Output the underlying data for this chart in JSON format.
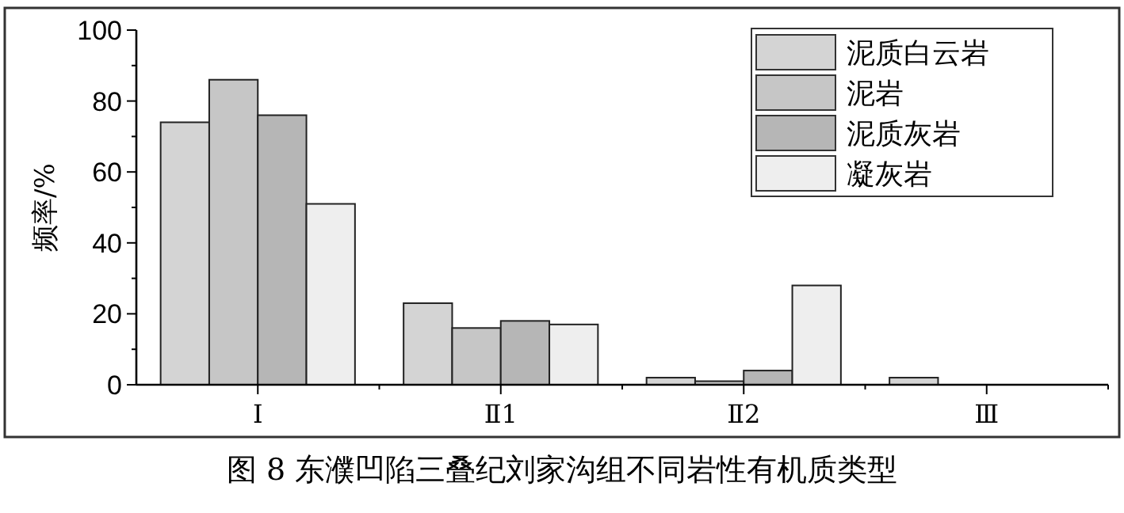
{
  "chart_data": {
    "type": "bar",
    "ylabel": "频率/%",
    "categories": [
      "Ⅰ",
      "Ⅱ1",
      "Ⅱ2",
      "Ⅲ"
    ],
    "series": [
      {
        "name": "泥质白云岩",
        "color": "#d4d4d4",
        "values": [
          74,
          23,
          2,
          2
        ]
      },
      {
        "name": "泥岩",
        "color": "#c6c6c6",
        "values": [
          86,
          16,
          1,
          0
        ]
      },
      {
        "name": "泥质灰岩",
        "color": "#b6b6b6",
        "values": [
          76,
          18,
          4,
          0
        ]
      },
      {
        "name": "凝灰岩",
        "color": "#eeeeee",
        "values": [
          51,
          17,
          28,
          0
        ]
      }
    ],
    "ylim": [
      0,
      100
    ],
    "yticks": [
      0,
      20,
      40,
      60,
      80,
      100
    ],
    "legend": "top right",
    "grid": false,
    "annotations": [
      "图 8 东濮凹陷三叠纪刘家沟组不同岩性有机质类型"
    ]
  }
}
